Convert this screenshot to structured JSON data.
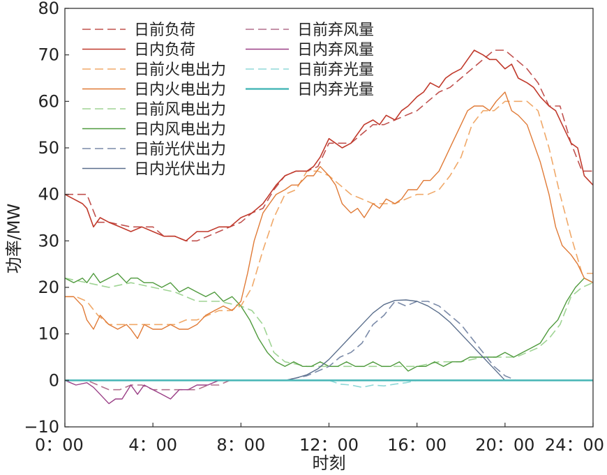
{
  "chart_data": {
    "type": "line",
    "xlabel": "时刻",
    "ylabel": "功率/MW",
    "xlim": [
      0,
      24
    ],
    "ylim": [
      -10,
      80
    ],
    "xticks": [
      {
        "value": 0,
        "label": "0：00"
      },
      {
        "value": 4,
        "label": "4：00"
      },
      {
        "value": 8,
        "label": "8：00"
      },
      {
        "value": 12,
        "label": "12：00"
      },
      {
        "value": 16,
        "label": "16：00"
      },
      {
        "value": 20,
        "label": "20：00"
      },
      {
        "value": 24,
        "label": "24：00"
      }
    ],
    "yticks": [
      {
        "value": -10,
        "label": "−10"
      },
      {
        "value": 0,
        "label": "0"
      },
      {
        "value": 10,
        "label": "10"
      },
      {
        "value": 20,
        "label": "20"
      },
      {
        "value": 30,
        "label": "30"
      },
      {
        "value": 40,
        "label": "40"
      },
      {
        "value": 50,
        "label": "50"
      },
      {
        "value": 60,
        "label": "60"
      },
      {
        "value": 70,
        "label": "70"
      },
      {
        "value": 80,
        "label": "80"
      }
    ],
    "grid": false,
    "legend_position": "top-left",
    "series": [
      {
        "name": "日前负荷",
        "color": "#c0504d",
        "dash": true,
        "width": 1.6,
        "x": [
          0,
          1,
          1.5,
          2,
          3,
          4,
          4.5,
          5,
          5.5,
          6,
          6.5,
          7,
          7.5,
          8,
          8.5,
          9,
          9.5,
          10,
          10.5,
          11,
          11.5,
          12,
          12.5,
          13,
          13.5,
          14,
          14.5,
          15,
          15.5,
          16,
          16.5,
          17,
          17.5,
          18,
          18.5,
          19,
          19.5,
          20,
          20.5,
          21,
          21.5,
          22,
          22.5,
          23,
          23.5,
          24
        ],
        "y": [
          40,
          40,
          34,
          34,
          33,
          33,
          31,
          31,
          30,
          30,
          31,
          32,
          33,
          34,
          36,
          37,
          41,
          44,
          45,
          45,
          46,
          51,
          51,
          51,
          53,
          55,
          55,
          56,
          57,
          58,
          60,
          62,
          63,
          65,
          67,
          69,
          71,
          71,
          69,
          67,
          64,
          59,
          59,
          51,
          45,
          45
        ]
      },
      {
        "name": "日内负荷",
        "color": "#c0392b",
        "dash": false,
        "width": 1.6,
        "x": [
          0,
          0.4,
          0.8,
          1,
          1.3,
          1.6,
          2,
          2.5,
          3,
          3.5,
          4,
          4.5,
          5,
          5.5,
          6,
          6.5,
          7,
          7.5,
          8,
          8.5,
          9,
          9.3,
          9.6,
          10,
          10.5,
          11,
          11.3,
          11.6,
          12,
          12.3,
          12.6,
          13,
          13.3,
          13.6,
          14,
          14.3,
          14.6,
          15,
          15.3,
          15.6,
          16,
          16.3,
          16.6,
          17,
          17.3,
          17.6,
          18,
          18.3,
          18.6,
          19,
          19.3,
          19.6,
          20,
          20.3,
          20.6,
          21,
          21.3,
          21.6,
          22,
          22.3,
          22.6,
          23,
          23.3,
          23.6,
          24
        ],
        "y": [
          40,
          39,
          38,
          37,
          33,
          35,
          34,
          33,
          32,
          33,
          32,
          31,
          31,
          30,
          32,
          32,
          33,
          33,
          35,
          36,
          38,
          40,
          42,
          44,
          45,
          45,
          46,
          48,
          52,
          51,
          50,
          51,
          53,
          55,
          56,
          55,
          57,
          56,
          58,
          59,
          61,
          62,
          64,
          63,
          65,
          66,
          67,
          69,
          71,
          70,
          69,
          69,
          67,
          68,
          65,
          64,
          63,
          61,
          59,
          58,
          55,
          51,
          50,
          44,
          42
        ]
      },
      {
        "name": "日前火电出力",
        "color": "#f0a868",
        "dash": true,
        "width": 1.6,
        "x": [
          0,
          0.5,
          1,
          1.5,
          2,
          2.5,
          3,
          3.5,
          4,
          4.5,
          5,
          5.5,
          6,
          6.5,
          7,
          7.5,
          8,
          8.5,
          9,
          9.5,
          10,
          10.5,
          11,
          11.5,
          12,
          12.5,
          13,
          13.5,
          14,
          14.5,
          15,
          15.5,
          16,
          16.5,
          17,
          17.5,
          18,
          18.5,
          19,
          19.5,
          20,
          20.5,
          21,
          21.5,
          22,
          22.5,
          23,
          23.5,
          24
        ],
        "y": [
          18,
          18,
          17,
          14,
          12,
          12,
          12,
          12,
          12,
          12,
          12,
          13,
          13,
          14,
          15,
          15,
          16,
          20,
          28,
          35,
          40,
          41,
          45,
          45,
          44,
          42,
          40,
          39,
          38,
          38,
          38,
          39,
          40,
          40,
          41,
          44,
          48,
          55,
          58,
          58,
          60,
          60,
          60,
          58,
          50,
          40,
          31,
          23,
          23
        ]
      },
      {
        "name": "日内火电出力",
        "color": "#e07a36",
        "dash": false,
        "width": 1.4,
        "x": [
          0,
          0.4,
          0.8,
          1,
          1.3,
          1.6,
          2,
          2.4,
          2.8,
          3,
          3.3,
          3.6,
          4,
          4.4,
          4.8,
          5.2,
          5.6,
          6,
          6.4,
          6.8,
          7.2,
          7.6,
          8,
          8.3,
          8.6,
          9,
          9.3,
          9.6,
          10,
          10.3,
          10.6,
          11,
          11.3,
          11.6,
          12,
          12.3,
          12.6,
          13,
          13.3,
          13.6,
          14,
          14.3,
          14.6,
          15,
          15.3,
          15.6,
          16,
          16.3,
          16.6,
          17,
          17.3,
          17.6,
          18,
          18.3,
          18.6,
          19,
          19.3,
          19.6,
          20,
          20.3,
          20.6,
          21,
          21.3,
          21.6,
          22,
          22.3,
          22.6,
          23,
          23.3,
          23.6,
          24
        ],
        "y": [
          18,
          18,
          16,
          13,
          11,
          14,
          12,
          11,
          12,
          11,
          9,
          12,
          11,
          11,
          12,
          11,
          11,
          12,
          14,
          15,
          16,
          15,
          17,
          23,
          30,
          36,
          38,
          40,
          41,
          42,
          42,
          44,
          44,
          46,
          44,
          42,
          38,
          36,
          37,
          35,
          38,
          37,
          39,
          38,
          39,
          41,
          41,
          43,
          43,
          45,
          48,
          51,
          55,
          58,
          59,
          59,
          58,
          60,
          62,
          58,
          57,
          55,
          51,
          47,
          40,
          33,
          29,
          27,
          25,
          22,
          21
        ]
      },
      {
        "name": "日前风电出力",
        "color": "#9fd494",
        "dash": true,
        "width": 1.6,
        "x": [
          0,
          1,
          2,
          3,
          4,
          5,
          6,
          7,
          8,
          8.5,
          9,
          9.5,
          10,
          11,
          12,
          13,
          14,
          15,
          16,
          17,
          18,
          19,
          20,
          20.5,
          21,
          21.5,
          22,
          22.5,
          23,
          23.5,
          24
        ],
        "y": [
          22,
          21,
          20,
          21,
          20,
          19,
          17,
          17,
          16,
          15,
          12,
          6,
          4,
          3,
          3,
          3,
          3,
          3,
          3,
          4,
          4,
          5,
          5,
          5,
          6,
          7,
          9,
          12,
          18,
          20,
          21
        ]
      },
      {
        "name": "日内风电出力",
        "color": "#4f9a3d",
        "dash": false,
        "width": 1.4,
        "x": [
          0,
          0.4,
          0.8,
          1,
          1.3,
          1.6,
          2,
          2.4,
          2.8,
          3,
          3.3,
          3.6,
          4,
          4.4,
          4.8,
          5.2,
          5.6,
          6,
          6.4,
          6.8,
          7.2,
          7.6,
          8,
          8.4,
          8.8,
          9.2,
          9.6,
          10,
          10.4,
          10.8,
          11.2,
          11.6,
          12,
          12.4,
          12.8,
          13.2,
          13.6,
          14,
          14.4,
          14.8,
          15.2,
          15.6,
          16,
          16.4,
          16.8,
          17.2,
          17.6,
          18,
          18.4,
          18.8,
          19.2,
          19.6,
          20,
          20.4,
          20.8,
          21.2,
          21.6,
          22,
          22.4,
          22.8,
          23.2,
          23.6,
          24
        ],
        "y": [
          22,
          21,
          22,
          21,
          23,
          21,
          22,
          23,
          21,
          22,
          22,
          21,
          21,
          20,
          21,
          19,
          20,
          19,
          18,
          19,
          17,
          18,
          16,
          13,
          9,
          6,
          4,
          3,
          4,
          3,
          3,
          4,
          3,
          3,
          4,
          3,
          3,
          4,
          3,
          3,
          4,
          2,
          3,
          3,
          4,
          3,
          4,
          4,
          5,
          5,
          5,
          5,
          6,
          5,
          6,
          7,
          8,
          11,
          13,
          17,
          20,
          22,
          21
        ]
      },
      {
        "name": "日前光伏出力",
        "color": "#7a8aa8",
        "dash": true,
        "width": 1.6,
        "x": [
          0,
          10,
          11,
          11.5,
          12,
          12.5,
          13,
          13.5,
          14,
          14.5,
          15,
          15.5,
          16,
          16.5,
          17,
          17.5,
          18,
          18.5,
          19,
          19.5,
          20,
          20.5,
          24
        ],
        "y": [
          0,
          0,
          1,
          2,
          3,
          5,
          6,
          8,
          12,
          14,
          17,
          16,
          17,
          17,
          16,
          14,
          12,
          9,
          6,
          3,
          1,
          0,
          0
        ]
      },
      {
        "name": "日内光伏出力",
        "color": "#5a6e8c",
        "dash": false,
        "width": 1.4,
        "x": [
          0,
          10,
          10.5,
          11,
          11.5,
          12,
          12.5,
          13,
          13.5,
          14,
          14.5,
          15,
          15.5,
          16,
          16.5,
          17,
          17.5,
          18,
          18.5,
          19,
          19.5,
          20,
          24
        ],
        "y": [
          0,
          0,
          0.5,
          1.2,
          2.5,
          4.5,
          7,
          9.5,
          12,
          14.5,
          16.3,
          17.2,
          17.3,
          17,
          16,
          14.5,
          12.5,
          10,
          7.5,
          5,
          2.5,
          0,
          0
        ]
      },
      {
        "name": "日前弃风量",
        "color": "#b26f8c",
        "dash": true,
        "width": 1.6,
        "x": [
          0,
          0.5,
          1,
          1.5,
          2,
          2.5,
          3,
          3.5,
          4,
          4.5,
          5,
          5.5,
          6,
          6.5,
          7,
          7.5,
          8,
          24
        ],
        "y": [
          0,
          0,
          0,
          -1,
          -2,
          -2,
          -1,
          -1,
          -2,
          -2,
          -2,
          -2,
          -2,
          -1,
          -1,
          0,
          0,
          0
        ]
      },
      {
        "name": "日内弃风量",
        "color": "#9a3f86",
        "dash": false,
        "width": 1.4,
        "x": [
          0,
          0.5,
          1,
          1.3,
          1.6,
          2,
          2.3,
          2.6,
          3,
          3.3,
          3.6,
          4,
          4.4,
          4.8,
          5.2,
          5.6,
          6,
          6.5,
          7,
          24
        ],
        "y": [
          0,
          -1,
          -0.5,
          -1.5,
          -3,
          -5,
          -4,
          -4,
          -1,
          -3,
          -1,
          -2,
          -3,
          -4,
          -2,
          -2,
          -1,
          -1,
          0,
          0
        ]
      },
      {
        "name": "日前弃光量",
        "color": "#8fd8d8",
        "dash": true,
        "width": 1.6,
        "x": [
          0,
          12,
          12.5,
          13,
          13.5,
          14,
          14.5,
          15,
          15.5,
          16,
          24
        ],
        "y": [
          0,
          0,
          -0.8,
          -1,
          -1.5,
          -1,
          -1.2,
          -0.8,
          -0.5,
          0,
          0
        ]
      },
      {
        "name": "日内弃光量",
        "color": "#4cb8b8",
        "dash": false,
        "width": 2.6,
        "x": [
          0,
          24
        ],
        "y": [
          0,
          0
        ]
      }
    ]
  }
}
